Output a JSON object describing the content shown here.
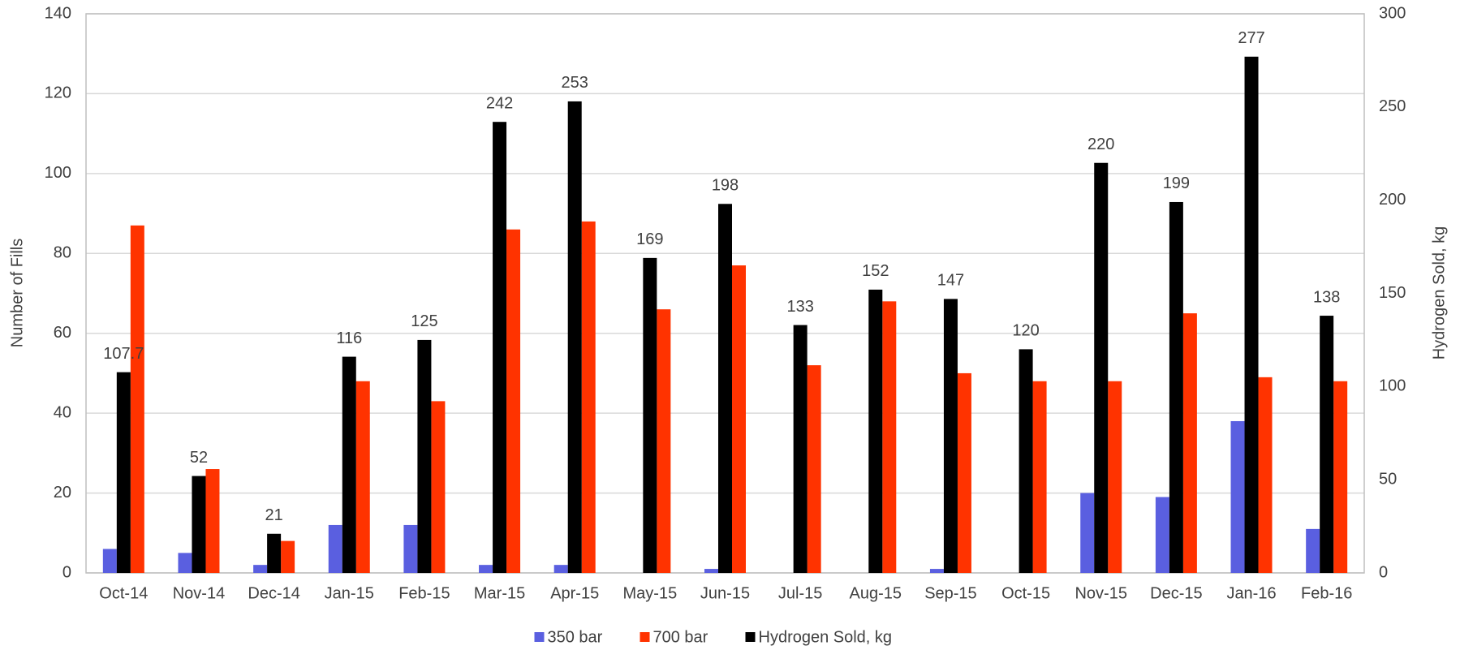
{
  "chart_data": {
    "type": "bar",
    "categories": [
      "Oct-14",
      "Nov-14",
      "Dec-14",
      "Jan-15",
      "Feb-15",
      "Mar-15",
      "Apr-15",
      "May-15",
      "Jun-15",
      "Jul-15",
      "Aug-15",
      "Sep-15",
      "Oct-15",
      "Nov-15",
      "Dec-15",
      "Jan-16",
      "Feb-16"
    ],
    "series": [
      {
        "name": "350 bar",
        "color": "#5a5fe0",
        "values": [
          6,
          5,
          2,
          12,
          12,
          2,
          2,
          0,
          1,
          0,
          0,
          1,
          0,
          20,
          19,
          38,
          11
        ]
      },
      {
        "name": "700 bar",
        "color": "#ff3300",
        "values": [
          87,
          26,
          8,
          48,
          43,
          86,
          88,
          66,
          77,
          52,
          68,
          50,
          48,
          48,
          65,
          49,
          48
        ]
      },
      {
        "name": "Hydrogen Sold, kg",
        "color": "#000000",
        "axis": "y2",
        "values": [
          107.7,
          52,
          21,
          116,
          125,
          242,
          253,
          169,
          198,
          133,
          152,
          147,
          120,
          220,
          199,
          277,
          138
        ],
        "data_labels": true
      }
    ],
    "y_label": "Number of Fills",
    "y2_label": "Hydrogen Sold, kg",
    "ylim": [
      0,
      140
    ],
    "yticks": [
      0,
      20,
      40,
      60,
      80,
      100,
      120,
      140
    ],
    "y2lim": [
      0,
      300
    ],
    "y2ticks": [
      0,
      50,
      100,
      150,
      200,
      250,
      300
    ],
    "grid": true,
    "legend": "bottom"
  }
}
